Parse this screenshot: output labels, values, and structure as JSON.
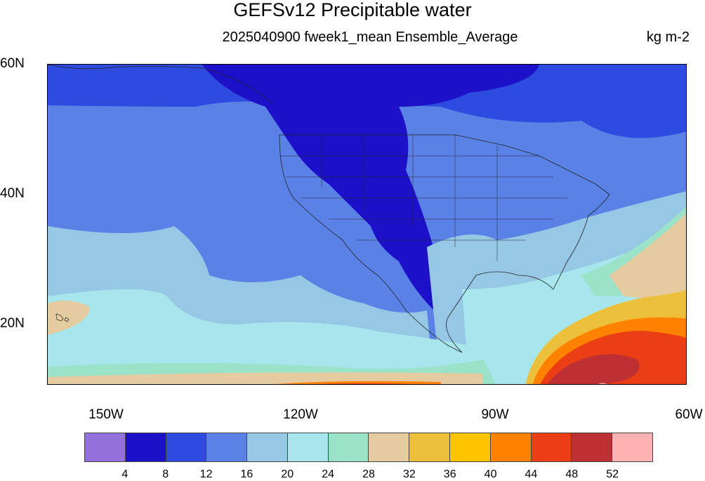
{
  "map": {
    "title": "GEFSv12 Precipitable water",
    "subtitle": "2025040900 fweek1_mean Ensemble_Average",
    "units": "kg m-2",
    "lat_labels": [
      "60N",
      "40N",
      "20N"
    ],
    "lon_labels": [
      "150W",
      "120W",
      "90W",
      "60W"
    ]
  },
  "colorbar": {
    "colors": [
      "#9370DB",
      "#1C10C8",
      "#2D4BDE",
      "#5A82E6",
      "#96C8E6",
      "#A6E6EC",
      "#9AE2C8",
      "#E4CCA0",
      "#EDC03C",
      "#FFC400",
      "#FF8200",
      "#EB3E14",
      "#BE3034",
      "#FFB2B2"
    ],
    "labels": [
      "4",
      "8",
      "12",
      "16",
      "20",
      "24",
      "28",
      "32",
      "36",
      "40",
      "44",
      "48",
      "52"
    ]
  }
}
